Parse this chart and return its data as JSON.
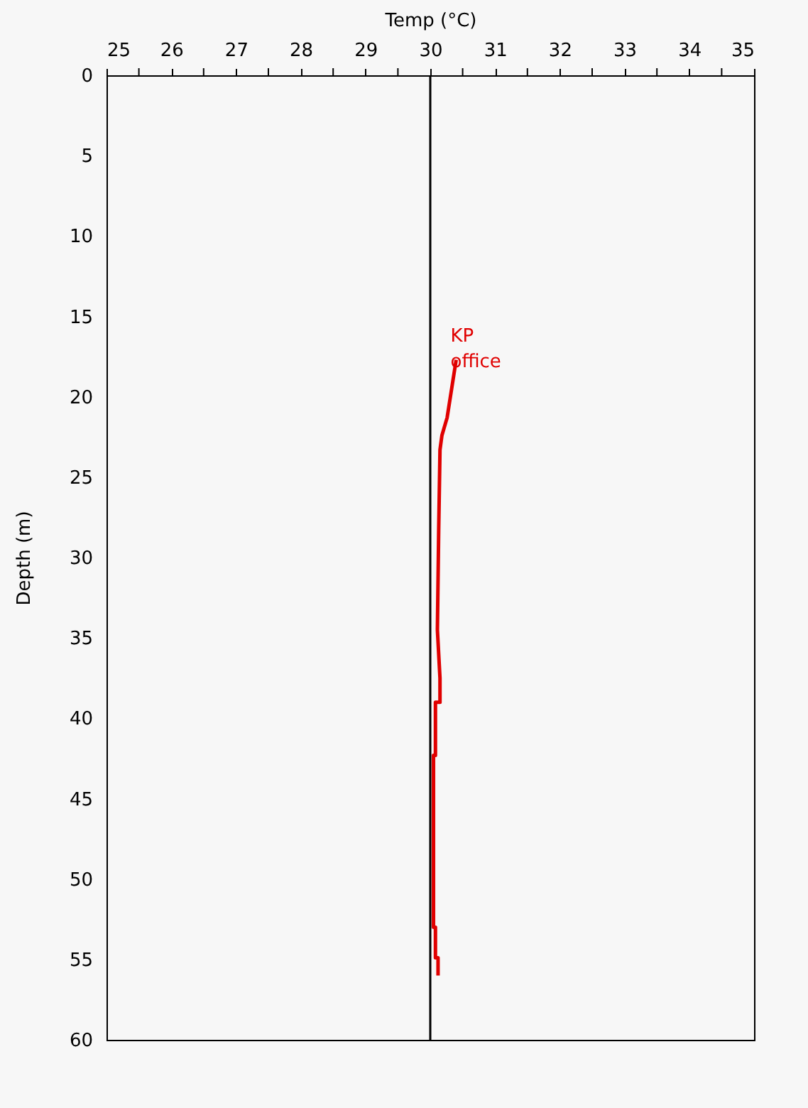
{
  "chart_data": {
    "type": "line",
    "xlabel": "Temp (°C)",
    "ylabel": "Depth (m)",
    "xlim": [
      25,
      35
    ],
    "ylim": [
      60,
      0
    ],
    "xticks": [
      25,
      {
        "value": 25.5,
        "label": null
      },
      26,
      {
        "value": 26.5,
        "label": null
      },
      27,
      {
        "value": 27.5,
        "label": null
      },
      28,
      {
        "value": 28.5,
        "label": null
      },
      29,
      {
        "value": 29.5,
        "label": null
      },
      30,
      {
        "value": 30.5,
        "label": null
      },
      31,
      {
        "value": 31.5,
        "label": null
      },
      32,
      {
        "value": 32.5,
        "label": null
      },
      33,
      {
        "value": 33.5,
        "label": null
      },
      34,
      {
        "value": 34.5,
        "label": null
      },
      35
    ],
    "yticks": [
      0,
      5,
      10,
      15,
      20,
      25,
      30,
      35,
      40,
      45,
      50,
      55,
      60
    ],
    "grid": false,
    "legend": false,
    "ref_lines": [
      {
        "axis": "x",
        "value": 30,
        "color": "#000000"
      }
    ],
    "series": [
      {
        "name": "KP office",
        "color": "#e00000",
        "x": [
          30.4,
          30.33,
          30.26,
          30.18,
          30.15,
          30.13,
          30.11,
          30.15,
          30.15,
          30.08,
          30.08,
          30.05,
          30.05,
          30.08,
          30.08,
          30.12,
          30.12
        ],
        "values": [
          17.7,
          19.5,
          21.3,
          22.4,
          23.3,
          28.3,
          34.5,
          37.5,
          39,
          39,
          42.3,
          42.3,
          53,
          53,
          54.9,
          54.9,
          56
        ]
      }
    ]
  }
}
